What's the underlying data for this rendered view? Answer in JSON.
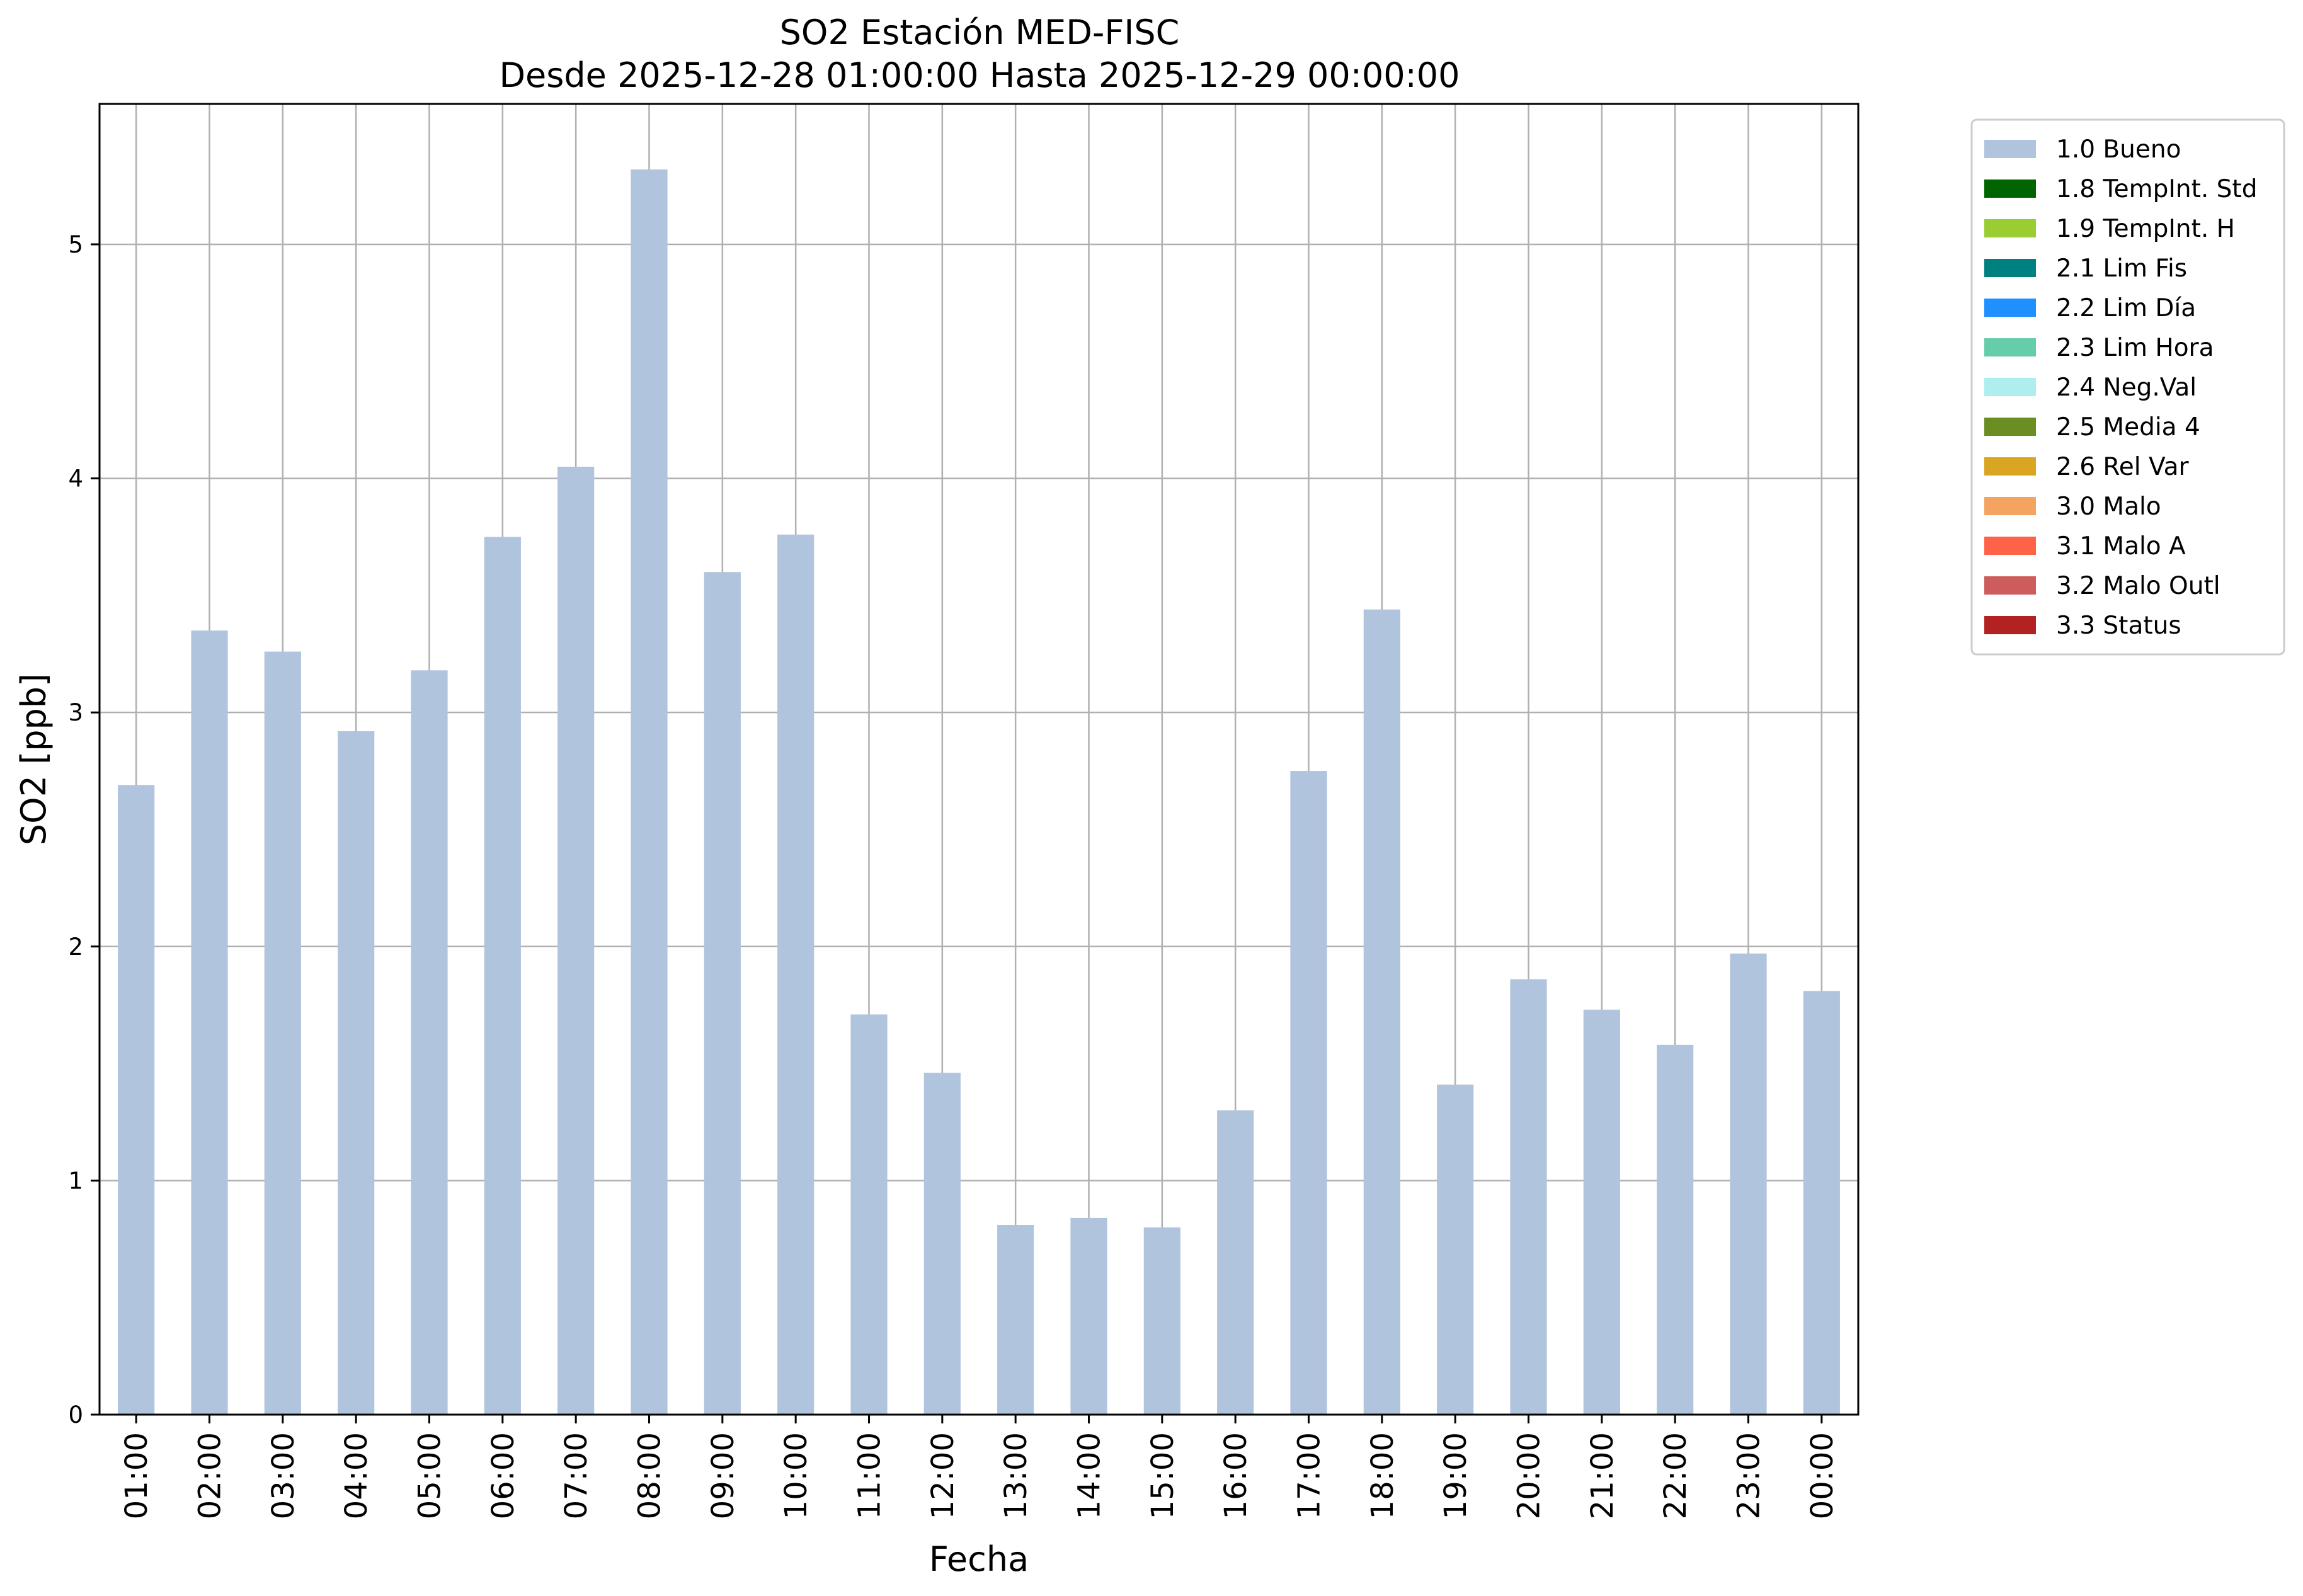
{
  "chart_data": {
    "type": "bar",
    "title": "SO2 Estación MED-FISC",
    "subtitle": "Desde 2025-12-28 01:00:00 Hasta 2025-12-29 00:00:00",
    "xlabel": "Fecha",
    "ylabel": "SO2 [ppb]",
    "ylim": [
      0,
      5.6
    ],
    "yticks": [
      0,
      1,
      2,
      3,
      4,
      5
    ],
    "grid": true,
    "legend_position": "outside-top-right",
    "categories": [
      "01:00",
      "02:00",
      "03:00",
      "04:00",
      "05:00",
      "06:00",
      "07:00",
      "08:00",
      "09:00",
      "10:00",
      "11:00",
      "12:00",
      "13:00",
      "14:00",
      "15:00",
      "16:00",
      "17:00",
      "18:00",
      "19:00",
      "20:00",
      "21:00",
      "22:00",
      "23:00",
      "00:00"
    ],
    "series": [
      {
        "name": "1.0 Bueno",
        "color": "#b0c4de",
        "values": [
          2.69,
          3.35,
          3.26,
          2.92,
          3.18,
          3.75,
          4.05,
          5.32,
          3.6,
          3.76,
          1.71,
          1.46,
          0.81,
          0.84,
          0.8,
          1.3,
          2.75,
          3.44,
          1.41,
          1.86,
          1.73,
          1.58,
          1.97,
          1.81
        ]
      }
    ],
    "legend": [
      {
        "label": "1.0 Bueno",
        "color": "#b0c4de"
      },
      {
        "label": "1.8 TempInt. Std",
        "color": "#006400"
      },
      {
        "label": "1.9 TempInt. H",
        "color": "#9acd32"
      },
      {
        "label": "2.1 Lim Fis",
        "color": "#008080"
      },
      {
        "label": "2.2 Lim Día",
        "color": "#1e90ff"
      },
      {
        "label": "2.3 Lim Hora",
        "color": "#66cdaa"
      },
      {
        "label": "2.4 Neg.Val",
        "color": "#afeeee"
      },
      {
        "label": "2.5 Media 4",
        "color": "#6b8e23"
      },
      {
        "label": "2.6 Rel Var",
        "color": "#daa520"
      },
      {
        "label": "3.0 Malo",
        "color": "#f4a460"
      },
      {
        "label": "3.1 Malo A",
        "color": "#ff6347"
      },
      {
        "label": "3.2 Malo Outl",
        "color": "#cd5c5c"
      },
      {
        "label": "3.3 Status",
        "color": "#b22222"
      }
    ]
  }
}
